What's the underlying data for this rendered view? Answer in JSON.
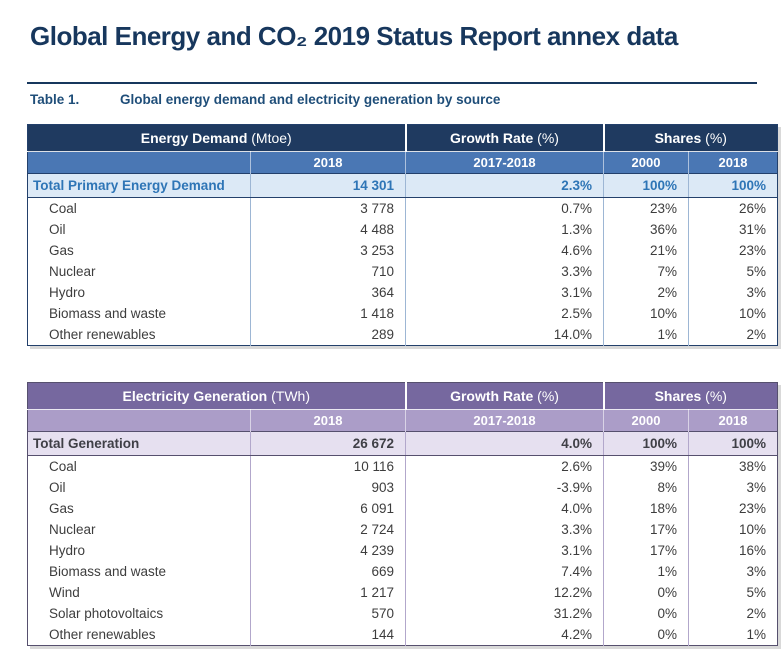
{
  "page": {
    "title": "Global Energy and CO₂ 2019 Status Report annex data",
    "caption_label": "Table 1.",
    "caption_title": "Global energy demand and electricity generation by source"
  },
  "colors": {
    "title_color": "#17375d",
    "caption_color": "#1f4e79",
    "data_text": "#3d3d3d",
    "t1_header": "#1f3a60",
    "t1_subheader": "#4a77b4",
    "t1_total_bg": "#dce9f6",
    "t1_total_text": "#2e75b6",
    "t1_grid": "#9db6d4",
    "t1_border": "#23406b",
    "t2_header": "#76689f",
    "t2_subheader": "#ab9dc8",
    "t2_total_bg": "#e6e0f0",
    "t2_grid": "#b2a7cb",
    "t2_border": "#56506e"
  },
  "tables": [
    {
      "name": "energy-demand",
      "group_headers": [
        {
          "bold": "Energy Demand",
          "rest": " (Mtoe)"
        },
        {
          "bold": "Growth Rate",
          "rest": " (%)"
        },
        {
          "bold": "Shares",
          "rest": " (%)"
        }
      ],
      "sub_headers": [
        "",
        "2018",
        "2017-2018",
        "2000",
        "2018"
      ],
      "total_row": {
        "label": "Total Primary Energy Demand",
        "values": [
          "14 301",
          "2.3%",
          "100%",
          "100%"
        ]
      },
      "rows": [
        {
          "label": "Coal",
          "values": [
            "3 778",
            "0.7%",
            "23%",
            "26%"
          ]
        },
        {
          "label": "Oil",
          "values": [
            "4 488",
            "1.3%",
            "36%",
            "31%"
          ]
        },
        {
          "label": "Gas",
          "values": [
            "3 253",
            "4.6%",
            "21%",
            "23%"
          ]
        },
        {
          "label": "Nuclear",
          "values": [
            "710",
            "3.3%",
            "7%",
            "5%"
          ]
        },
        {
          "label": "Hydro",
          "values": [
            "364",
            "3.1%",
            "2%",
            "3%"
          ]
        },
        {
          "label": "Biomass and waste",
          "values": [
            "1 418",
            "2.5%",
            "10%",
            "10%"
          ]
        },
        {
          "label": "Other renewables",
          "values": [
            "289",
            "14.0%",
            "1%",
            "2%"
          ]
        }
      ]
    },
    {
      "name": "electricity-generation",
      "group_headers": [
        {
          "bold": "Electricity Generation",
          "rest": " (TWh)"
        },
        {
          "bold": "Growth Rate",
          "rest": " (%)"
        },
        {
          "bold": "Shares",
          "rest": " (%)"
        }
      ],
      "sub_headers": [
        "",
        "2018",
        "2017-2018",
        "2000",
        "2018"
      ],
      "total_row": {
        "label": "Total Generation",
        "values": [
          "26 672",
          "4.0%",
          "100%",
          "100%"
        ]
      },
      "rows": [
        {
          "label": "Coal",
          "values": [
            "10 116",
            "2.6%",
            "39%",
            "38%"
          ]
        },
        {
          "label": "Oil",
          "values": [
            "903",
            "-3.9%",
            "8%",
            "3%"
          ]
        },
        {
          "label": "Gas",
          "values": [
            "6 091",
            "4.0%",
            "18%",
            "23%"
          ]
        },
        {
          "label": "Nuclear",
          "values": [
            "2 724",
            "3.3%",
            "17%",
            "10%"
          ]
        },
        {
          "label": "Hydro",
          "values": [
            "4 239",
            "3.1%",
            "17%",
            "16%"
          ]
        },
        {
          "label": "Biomass and waste",
          "values": [
            "669",
            "7.4%",
            "1%",
            "3%"
          ]
        },
        {
          "label": "Wind",
          "values": [
            "1 217",
            "12.2%",
            "0%",
            "5%"
          ]
        },
        {
          "label": "Solar photovoltaics",
          "values": [
            "570",
            "31.2%",
            "0%",
            "2%"
          ]
        },
        {
          "label": "Other renewables",
          "values": [
            "144",
            "4.2%",
            "0%",
            "1%"
          ]
        }
      ]
    }
  ]
}
